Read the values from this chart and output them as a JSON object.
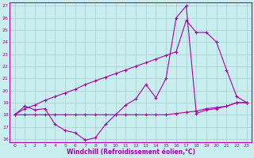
{
  "xlabel": "Windchill (Refroidissement éolien,°C)",
  "bg_color": "#c8eef0",
  "line_color": "#aa00aa",
  "grid_color": "#aacccc",
  "xlim": [
    -0.5,
    23.5
  ],
  "ylim": [
    15.7,
    27.3
  ],
  "xticks": [
    0,
    1,
    2,
    3,
    4,
    5,
    6,
    7,
    8,
    9,
    10,
    11,
    12,
    13,
    14,
    15,
    16,
    17,
    18,
    19,
    20,
    21,
    22,
    23
  ],
  "yticks": [
    16,
    17,
    18,
    19,
    20,
    21,
    22,
    23,
    24,
    25,
    26,
    27
  ],
  "line1_x": [
    0,
    1,
    2,
    3,
    4,
    5,
    6,
    7,
    8,
    9,
    10,
    11,
    12,
    13,
    14,
    15,
    16,
    17,
    18,
    19,
    20,
    21,
    22,
    23
  ],
  "line1_y": [
    18.0,
    18.7,
    18.4,
    18.5,
    17.2,
    16.7,
    16.5,
    15.9,
    16.1,
    17.2,
    18.0,
    18.8,
    19.3,
    20.5,
    19.4,
    21.0,
    26.0,
    27.0,
    18.1,
    18.4,
    18.5,
    18.7,
    19.0,
    19.0
  ],
  "line2_x": [
    0,
    1,
    2,
    3,
    4,
    5,
    6,
    7,
    8,
    9,
    10,
    11,
    12,
    13,
    14,
    15,
    16,
    17,
    18,
    19,
    20,
    21,
    22,
    23
  ],
  "line2_y": [
    18.0,
    18.0,
    18.0,
    18.0,
    18.0,
    18.0,
    18.0,
    18.0,
    18.0,
    18.0,
    18.0,
    18.0,
    18.0,
    18.0,
    18.0,
    18.0,
    18.1,
    18.2,
    18.3,
    18.5,
    18.6,
    18.7,
    19.0,
    19.0
  ],
  "line3_x": [
    0,
    1,
    2,
    3,
    4,
    5,
    6,
    7,
    8,
    9,
    10,
    11,
    12,
    13,
    14,
    15,
    16,
    17,
    18,
    19,
    20,
    21,
    22,
    23
  ],
  "line3_y": [
    18.0,
    18.5,
    18.8,
    19.2,
    19.5,
    19.8,
    20.1,
    20.5,
    20.8,
    21.1,
    21.4,
    21.7,
    22.0,
    22.3,
    22.6,
    22.9,
    23.2,
    25.8,
    24.8,
    24.8,
    24.0,
    21.7,
    19.5,
    19.0
  ]
}
